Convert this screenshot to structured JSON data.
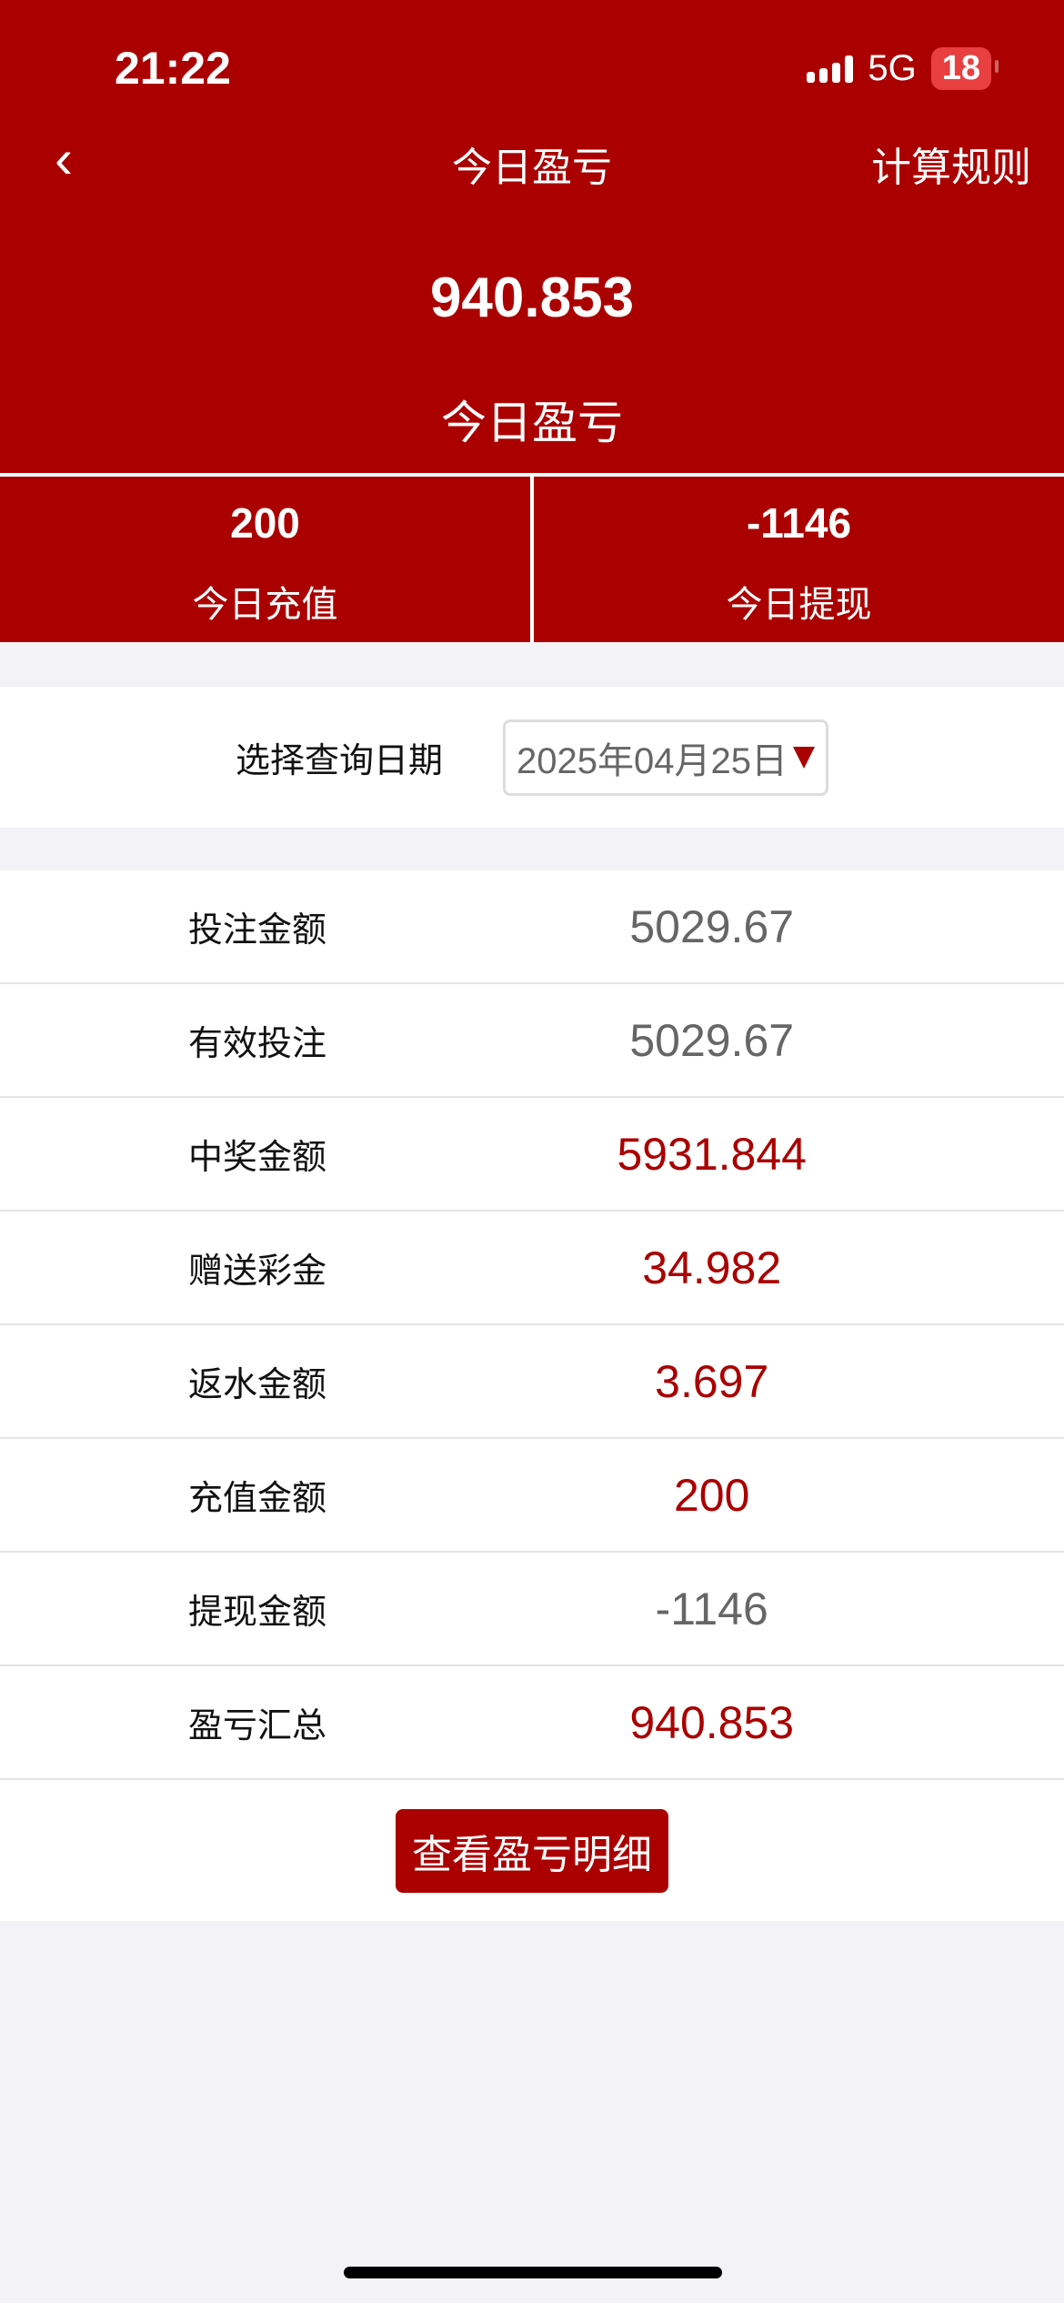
{
  "status_bar": {
    "time": "21:22",
    "network": "5G",
    "battery": "18"
  },
  "nav": {
    "back_icon": "chevron-left",
    "title": "今日盈亏",
    "rules_label": "计算规则"
  },
  "summary": {
    "value": "940.853",
    "label": "今日盈亏"
  },
  "stats": [
    {
      "value": "200",
      "label": "今日充值"
    },
    {
      "value": "-1146",
      "label": "今日提现"
    }
  ],
  "date_filter": {
    "label": "选择查询日期",
    "value": "2025年04月25日"
  },
  "rows": [
    {
      "label": "投注金额",
      "value": "5029.67",
      "color": "#666666"
    },
    {
      "label": "有效投注",
      "value": "5029.67",
      "color": "#666666"
    },
    {
      "label": "中奖金额",
      "value": "5931.844",
      "color": "#aa0000"
    },
    {
      "label": "赠送彩金",
      "value": "34.982",
      "color": "#aa0000"
    },
    {
      "label": "返水金额",
      "value": "3.697",
      "color": "#aa0000"
    },
    {
      "label": "充值金额",
      "value": "200",
      "color": "#aa0000"
    },
    {
      "label": "提现金额",
      "value": "-1146",
      "color": "#666666"
    },
    {
      "label": "盈亏汇总",
      "value": "940.853",
      "color": "#aa0000"
    }
  ],
  "detail_button": "查看盈亏明细",
  "colors": {
    "brand": "#aa0000",
    "background": "#f2f2f7"
  }
}
